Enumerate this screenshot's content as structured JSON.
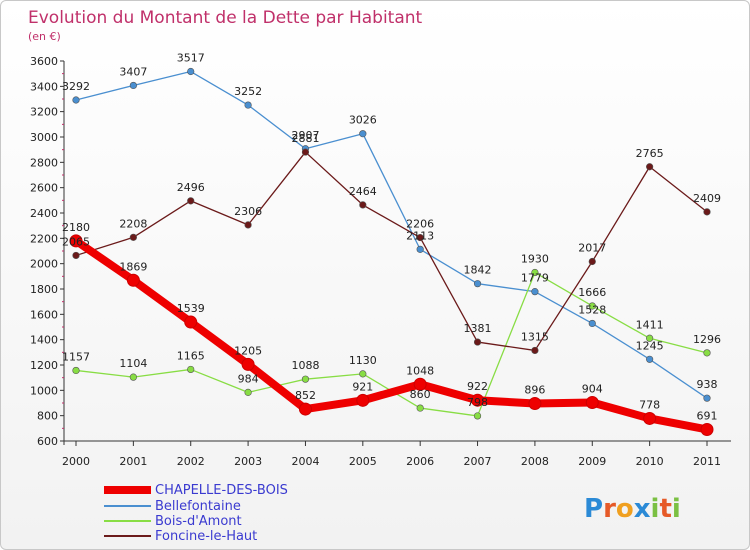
{
  "chart_data": {
    "type": "line",
    "title": "Evolution du Montant de la Dette par Habitant",
    "subtitle": "(en €)",
    "categories": [
      "2000",
      "2001",
      "2002",
      "2003",
      "2004",
      "2005",
      "2006",
      "2007",
      "2008",
      "2009",
      "2010",
      "2011"
    ],
    "ylim": [
      600,
      3600
    ],
    "yticks": [
      600,
      800,
      1000,
      1200,
      1400,
      1600,
      1800,
      2000,
      2200,
      2400,
      2600,
      2800,
      3000,
      3200,
      3400,
      3600
    ],
    "grid": false,
    "legend_position": "bottom-left",
    "series": [
      {
        "name": "CHAPELLE-DES-BOIS",
        "color": "#ee0000",
        "values": [
          2180,
          1869,
          1539,
          1205,
          852,
          921,
          1048,
          922,
          896,
          904,
          778,
          691
        ]
      },
      {
        "name": "Bellefontaine",
        "color": "#4a8fd0",
        "values": [
          3292,
          3407,
          3517,
          3252,
          2907,
          3026,
          2113,
          1842,
          1779,
          1528,
          1245,
          938
        ]
      },
      {
        "name": "Bois-d'Amont",
        "color": "#88dd44",
        "values": [
          1157,
          1104,
          1165,
          984,
          1088,
          1130,
          860,
          798,
          1930,
          1666,
          1411,
          1296
        ]
      },
      {
        "name": "Foncine-le-Haut",
        "color": "#6b1a1a",
        "values": [
          2065,
          2208,
          2496,
          2306,
          2881,
          2464,
          2206,
          1381,
          1315,
          2017,
          2765,
          2409
        ]
      }
    ]
  },
  "branding": {
    "logo": "Proxiti"
  }
}
